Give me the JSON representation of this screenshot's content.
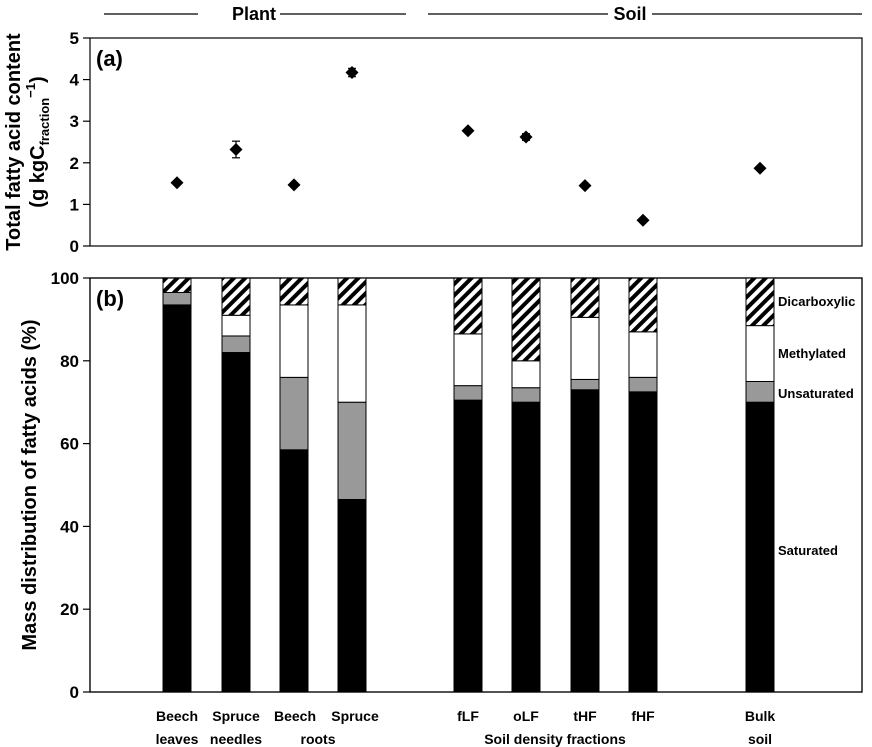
{
  "groups": {
    "plant": "Plant",
    "soil": "Soil"
  },
  "category_labels": {
    "cat0": [
      "Beech",
      "leaves"
    ],
    "cat1": [
      "Spruce",
      "needles"
    ],
    "cat2": [
      "Beech",
      "roots"
    ],
    "cat3": [
      "Spruce",
      ""
    ],
    "cat4": [
      "fLF",
      ""
    ],
    "cat5": [
      "oLF",
      ""
    ],
    "cat6": [
      "tHF",
      ""
    ],
    "cat7": [
      "fHF",
      ""
    ],
    "cat8": [
      "Bulk",
      "soil"
    ],
    "soil_density_fractions": "Soil density fractions"
  },
  "colors": {
    "saturated": "#000000",
    "unsaturated": "#999999",
    "methylated": "#ffffff",
    "dicarboxylic": "hatched"
  },
  "chart_data": [
    {
      "type": "scatter",
      "panel_label": "(a)",
      "ylabel_line1": "Total fatty acid content",
      "ylabel_line2_prefix": "(g kgC",
      "ylabel_sub": "fraction",
      "ylabel_sup": "−1",
      "ylabel_suffix": ")",
      "ylim": [
        0,
        5
      ],
      "yticks": [
        0,
        1,
        2,
        3,
        4,
        5
      ],
      "categories": [
        "Beech leaves",
        "Spruce needles",
        "Beech roots",
        "Spruce",
        "fLF",
        "oLF",
        "tHF",
        "fHF",
        "Bulk soil"
      ],
      "values": [
        1.52,
        2.32,
        1.47,
        4.17,
        2.77,
        2.62,
        1.45,
        0.62,
        1.87
      ],
      "errors": [
        0.05,
        0.2,
        0.05,
        0.1,
        0.06,
        0.08,
        0.05,
        0.04,
        0.05
      ]
    },
    {
      "type": "bar",
      "stacked": true,
      "panel_label": "(b)",
      "ylabel": "Mass distribution of fatty acids (%)",
      "ylim": [
        0,
        100
      ],
      "yticks": [
        0,
        20,
        40,
        60,
        80,
        100
      ],
      "categories": [
        "Beech leaves",
        "Spruce needles",
        "Beech roots",
        "Spruce",
        "fLF",
        "oLF",
        "tHF",
        "fHF",
        "Bulk soil"
      ],
      "series": [
        {
          "name": "Saturated",
          "values": [
            93.5,
            82,
            58.5,
            46.5,
            70.5,
            70,
            73,
            72.5,
            70
          ]
        },
        {
          "name": "Unsaturated",
          "values": [
            3,
            4,
            17.5,
            23.5,
            3.5,
            3.5,
            2.5,
            3.5,
            5
          ]
        },
        {
          "name": "Methylated",
          "values": [
            0,
            5,
            17.5,
            23.5,
            12.5,
            6.5,
            15,
            11,
            13.5
          ]
        },
        {
          "name": "Dicarboxylic",
          "values": [
            3.5,
            9,
            6.5,
            6.5,
            13.5,
            20,
            9.5,
            13,
            11.5
          ]
        }
      ]
    }
  ]
}
